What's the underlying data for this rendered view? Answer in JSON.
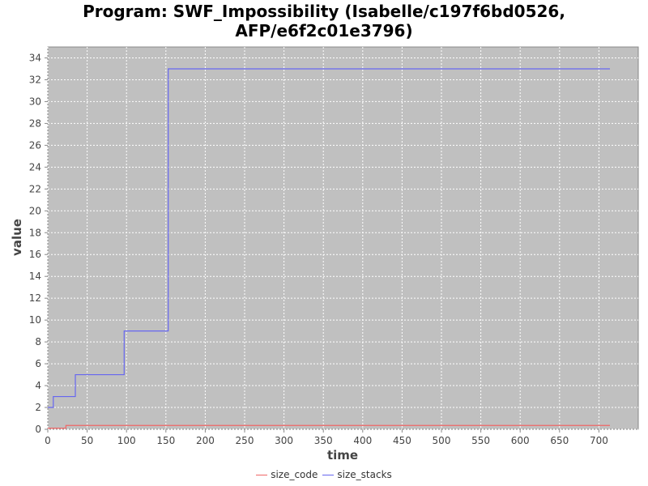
{
  "chart_data": {
    "type": "line",
    "title_lines": [
      "Program: SWF_Impossibility (Isabelle/c197f6bd0526,",
      "AFP/e6f2c01e3796)"
    ],
    "xlabel": "time",
    "ylabel": "value",
    "xlim": [
      0,
      750
    ],
    "ylim": [
      0,
      35
    ],
    "xticks": [
      0,
      50,
      100,
      150,
      200,
      250,
      300,
      350,
      400,
      450,
      500,
      550,
      600,
      650,
      700
    ],
    "yticks": [
      0,
      2,
      4,
      6,
      8,
      10,
      12,
      14,
      16,
      18,
      20,
      22,
      24,
      26,
      28,
      30,
      32,
      34
    ],
    "grid": true,
    "legend_position": "bottom",
    "series": [
      {
        "name": "size_code",
        "color": "#f06666",
        "step": true,
        "x": [
          0,
          23,
          23,
          714
        ],
        "y": [
          0.1,
          0.1,
          0.35,
          0.35
        ]
      },
      {
        "name": "size_stacks",
        "color": "#6666f0",
        "step": true,
        "x": [
          0,
          7,
          35,
          97,
          153,
          714
        ],
        "y": [
          2,
          3,
          5,
          9,
          33,
          33
        ]
      }
    ]
  }
}
